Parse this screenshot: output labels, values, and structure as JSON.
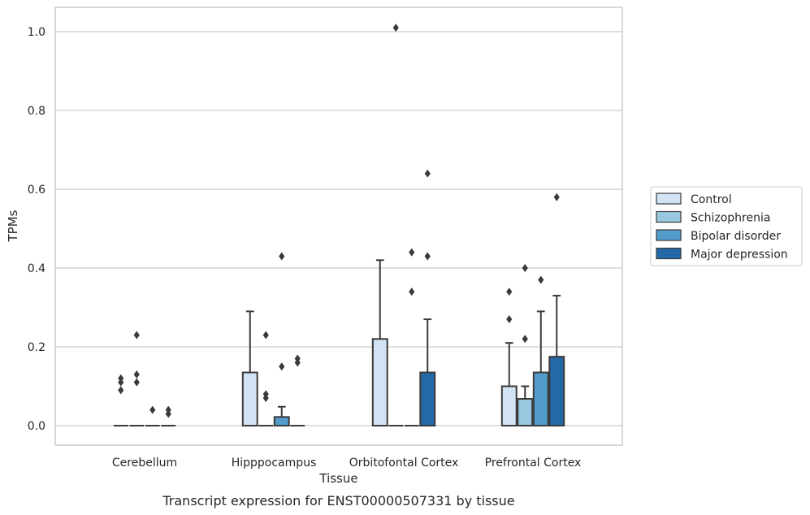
{
  "chart_data": {
    "type": "boxplot",
    "title": "Transcript expression for ENST00000507331 by tissue",
    "xlabel": "Tissue",
    "ylabel": "TPMs",
    "ylim": [
      -0.05,
      1.06
    ],
    "yticks": [
      0.0,
      0.2,
      0.4,
      0.6,
      0.8,
      1.0
    ],
    "ytick_labels": [
      "0.0",
      "0.2",
      "0.4",
      "0.6",
      "0.8",
      "1.0"
    ],
    "grid": true,
    "legend_position": "right",
    "categories": [
      "Cerebellum",
      "Hipppocampus",
      "Orbitofontal Cortex",
      "Prefrontal Cortex"
    ],
    "series": [
      {
        "name": "Control",
        "color": "#d2e3f3",
        "boxes": [
          {
            "q1": 0.0,
            "median": 0.0,
            "q3": 0.0,
            "whisker_low": 0.0,
            "whisker_high": 0.0,
            "outliers": [
              0.09,
              0.11,
              0.12
            ]
          },
          {
            "q1": 0.0,
            "median": 0.0,
            "q3": 0.135,
            "whisker_low": 0.0,
            "whisker_high": 0.29,
            "outliers": []
          },
          {
            "q1": 0.0,
            "median": 0.0,
            "q3": 0.22,
            "whisker_low": 0.0,
            "whisker_high": 0.42,
            "outliers": []
          },
          {
            "q1": 0.0,
            "median": 0.0,
            "q3": 0.1,
            "whisker_low": 0.0,
            "whisker_high": 0.21,
            "outliers": [
              0.27,
              0.34
            ]
          }
        ]
      },
      {
        "name": "Schizophrenia",
        "color": "#9ac8e0",
        "boxes": [
          {
            "q1": 0.0,
            "median": 0.0,
            "q3": 0.0,
            "whisker_low": 0.0,
            "whisker_high": 0.0,
            "outliers": [
              0.11,
              0.13,
              0.23
            ]
          },
          {
            "q1": 0.0,
            "median": 0.0,
            "q3": 0.0,
            "whisker_low": 0.0,
            "whisker_high": 0.0,
            "outliers": [
              0.07,
              0.08,
              0.23
            ]
          },
          {
            "q1": 0.0,
            "median": 0.0,
            "q3": 0.0,
            "whisker_low": 0.0,
            "whisker_high": 0.0,
            "outliers": [
              1.01
            ]
          },
          {
            "q1": 0.0,
            "median": 0.0,
            "q3": 0.068,
            "whisker_low": 0.0,
            "whisker_high": 0.1,
            "outliers": [
              0.22,
              0.4
            ]
          }
        ]
      },
      {
        "name": "Bipolar disorder",
        "color": "#529dcc",
        "boxes": [
          {
            "q1": 0.0,
            "median": 0.0,
            "q3": 0.0,
            "whisker_low": 0.0,
            "whisker_high": 0.0,
            "outliers": [
              0.04
            ]
          },
          {
            "q1": 0.0,
            "median": 0.0,
            "q3": 0.022,
            "whisker_low": 0.0,
            "whisker_high": 0.048,
            "outliers": [
              0.15,
              0.43
            ]
          },
          {
            "q1": 0.0,
            "median": 0.0,
            "q3": 0.0,
            "whisker_low": 0.0,
            "whisker_high": 0.0,
            "outliers": [
              0.34,
              0.44
            ]
          },
          {
            "q1": 0.0,
            "median": 0.0,
            "q3": 0.135,
            "whisker_low": 0.0,
            "whisker_high": 0.29,
            "outliers": [
              0.37
            ]
          }
        ]
      },
      {
        "name": "Major depression",
        "color": "#2369a8",
        "boxes": [
          {
            "q1": 0.0,
            "median": 0.0,
            "q3": 0.0,
            "whisker_low": 0.0,
            "whisker_high": 0.0,
            "outliers": [
              0.03,
              0.04
            ]
          },
          {
            "q1": 0.0,
            "median": 0.0,
            "q3": 0.0,
            "whisker_low": 0.0,
            "whisker_high": 0.0,
            "outliers": [
              0.16,
              0.17
            ]
          },
          {
            "q1": 0.0,
            "median": 0.0,
            "q3": 0.135,
            "whisker_low": 0.0,
            "whisker_high": 0.27,
            "outliers": [
              0.43,
              0.64
            ]
          },
          {
            "q1": 0.0,
            "median": 0.0,
            "q3": 0.175,
            "whisker_low": 0.0,
            "whisker_high": 0.33,
            "outliers": [
              0.58
            ]
          }
        ]
      }
    ]
  }
}
